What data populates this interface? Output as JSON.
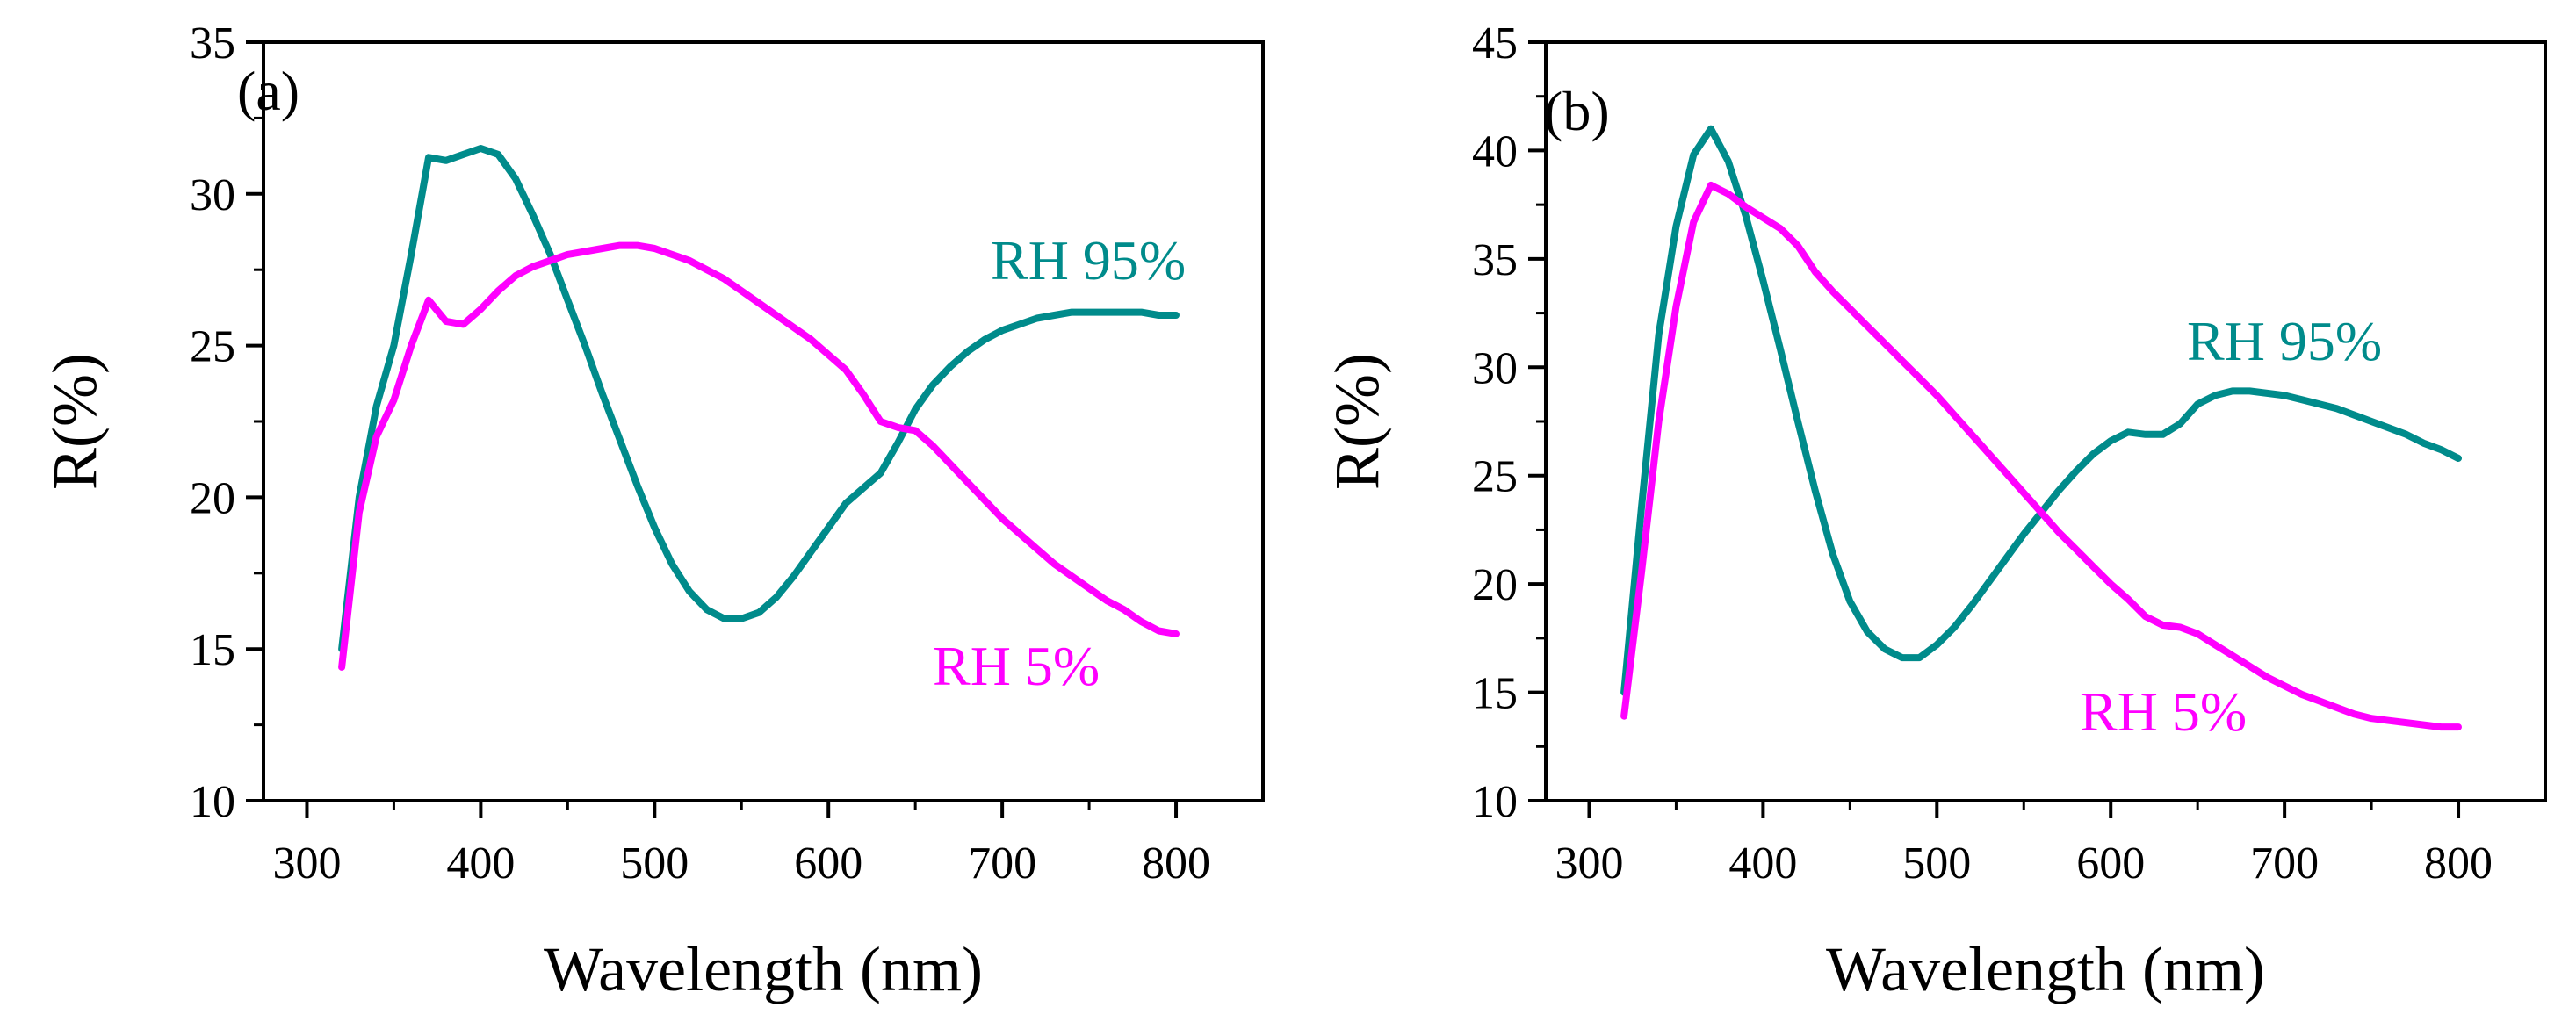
{
  "colors": {
    "rh95": "#008B8B",
    "rh5": "#FF00FF",
    "axis": "#000000"
  },
  "chart_data": [
    {
      "type": "line",
      "panel_label": "(a)",
      "xlabel": "Wavelength (nm)",
      "ylabel": "R(%)",
      "xlim": [
        275,
        850
      ],
      "ylim": [
        10,
        35
      ],
      "xticks": [
        300,
        400,
        500,
        600,
        700,
        800
      ],
      "yticks": [
        10,
        15,
        20,
        25,
        30,
        35
      ],
      "grid": false,
      "series": [
        {
          "name": "RH 95%",
          "label": "RH 95%",
          "color": "#008B8B",
          "x": [
            320,
            330,
            340,
            350,
            360,
            370,
            380,
            390,
            400,
            410,
            420,
            430,
            440,
            450,
            460,
            470,
            480,
            490,
            500,
            510,
            520,
            530,
            540,
            550,
            560,
            570,
            580,
            590,
            600,
            610,
            620,
            630,
            640,
            650,
            660,
            670,
            680,
            690,
            700,
            710,
            720,
            730,
            740,
            750,
            760,
            770,
            780,
            790,
            800
          ],
          "y": [
            15.0,
            20.0,
            23.0,
            25.0,
            28.0,
            31.2,
            31.1,
            31.3,
            31.5,
            31.3,
            30.5,
            29.3,
            28.0,
            26.5,
            25.0,
            23.4,
            21.9,
            20.4,
            19.0,
            17.8,
            16.9,
            16.3,
            16.0,
            16.0,
            16.2,
            16.7,
            17.4,
            18.2,
            19.0,
            19.8,
            20.3,
            20.8,
            21.8,
            22.9,
            23.7,
            24.3,
            24.8,
            25.2,
            25.5,
            25.7,
            25.9,
            26.0,
            26.1,
            26.1,
            26.1,
            26.1,
            26.1,
            26.0,
            26.0
          ]
        },
        {
          "name": "RH 5%",
          "label": "RH 5%",
          "color": "#FF00FF",
          "x": [
            320,
            330,
            340,
            350,
            360,
            370,
            380,
            390,
            400,
            410,
            420,
            430,
            440,
            450,
            460,
            470,
            480,
            490,
            500,
            510,
            520,
            530,
            540,
            550,
            560,
            570,
            580,
            590,
            600,
            610,
            620,
            630,
            640,
            650,
            660,
            670,
            680,
            690,
            700,
            710,
            720,
            730,
            740,
            750,
            760,
            770,
            780,
            790,
            800
          ],
          "y": [
            14.4,
            19.5,
            22.0,
            23.2,
            25.0,
            26.5,
            25.8,
            25.7,
            26.2,
            26.8,
            27.3,
            27.6,
            27.8,
            28.0,
            28.1,
            28.2,
            28.3,
            28.3,
            28.2,
            28.0,
            27.8,
            27.5,
            27.2,
            26.8,
            26.4,
            26.0,
            25.6,
            25.2,
            24.7,
            24.2,
            23.4,
            22.5,
            22.3,
            22.2,
            21.7,
            21.1,
            20.5,
            19.9,
            19.3,
            18.8,
            18.3,
            17.8,
            17.4,
            17.0,
            16.6,
            16.3,
            15.9,
            15.6,
            15.5
          ]
        }
      ]
    },
    {
      "type": "line",
      "panel_label": "(b)",
      "xlabel": "Wavelength (nm)",
      "ylabel": "R(%)",
      "xlim": [
        275,
        850
      ],
      "ylim": [
        10,
        45
      ],
      "xticks": [
        300,
        400,
        500,
        600,
        700,
        800
      ],
      "yticks": [
        10,
        15,
        20,
        25,
        30,
        35,
        40,
        45
      ],
      "grid": false,
      "series": [
        {
          "name": "RH 95%",
          "label": "RH 95%",
          "color": "#008B8B",
          "x": [
            320,
            330,
            340,
            350,
            360,
            370,
            380,
            390,
            400,
            410,
            420,
            430,
            440,
            450,
            460,
            470,
            480,
            490,
            500,
            510,
            520,
            530,
            540,
            550,
            560,
            570,
            580,
            590,
            600,
            610,
            620,
            630,
            640,
            650,
            660,
            670,
            680,
            690,
            700,
            710,
            720,
            730,
            740,
            750,
            760,
            770,
            780,
            790,
            800
          ],
          "y": [
            15.0,
            23.5,
            31.5,
            36.5,
            39.8,
            41.0,
            39.5,
            37.0,
            34.0,
            30.8,
            27.5,
            24.3,
            21.4,
            19.2,
            17.8,
            17.0,
            16.6,
            16.6,
            17.2,
            18.0,
            19.0,
            20.1,
            21.2,
            22.3,
            23.3,
            24.3,
            25.2,
            26.0,
            26.6,
            27.0,
            26.9,
            26.9,
            27.4,
            28.3,
            28.7,
            28.9,
            28.9,
            28.8,
            28.7,
            28.5,
            28.3,
            28.1,
            27.8,
            27.5,
            27.2,
            26.9,
            26.5,
            26.2,
            25.8
          ]
        },
        {
          "name": "RH 5%",
          "label": "RH 5%",
          "color": "#FF00FF",
          "x": [
            320,
            330,
            340,
            350,
            360,
            370,
            380,
            390,
            400,
            410,
            420,
            430,
            440,
            450,
            460,
            470,
            480,
            490,
            500,
            510,
            520,
            530,
            540,
            550,
            560,
            570,
            580,
            590,
            600,
            610,
            620,
            630,
            640,
            650,
            660,
            670,
            680,
            690,
            700,
            710,
            720,
            730,
            740,
            750,
            760,
            770,
            780,
            790,
            800
          ],
          "y": [
            13.9,
            20.5,
            27.5,
            32.8,
            36.7,
            38.4,
            38.0,
            37.4,
            36.9,
            36.4,
            35.6,
            34.4,
            33.5,
            32.7,
            31.9,
            31.1,
            30.3,
            29.5,
            28.7,
            27.8,
            26.9,
            26.0,
            25.1,
            24.2,
            23.3,
            22.4,
            21.6,
            20.8,
            20.0,
            19.3,
            18.5,
            18.1,
            18.0,
            17.7,
            17.2,
            16.7,
            16.2,
            15.7,
            15.3,
            14.9,
            14.6,
            14.3,
            14.0,
            13.8,
            13.7,
            13.6,
            13.5,
            13.4,
            13.4
          ]
        }
      ]
    }
  ]
}
